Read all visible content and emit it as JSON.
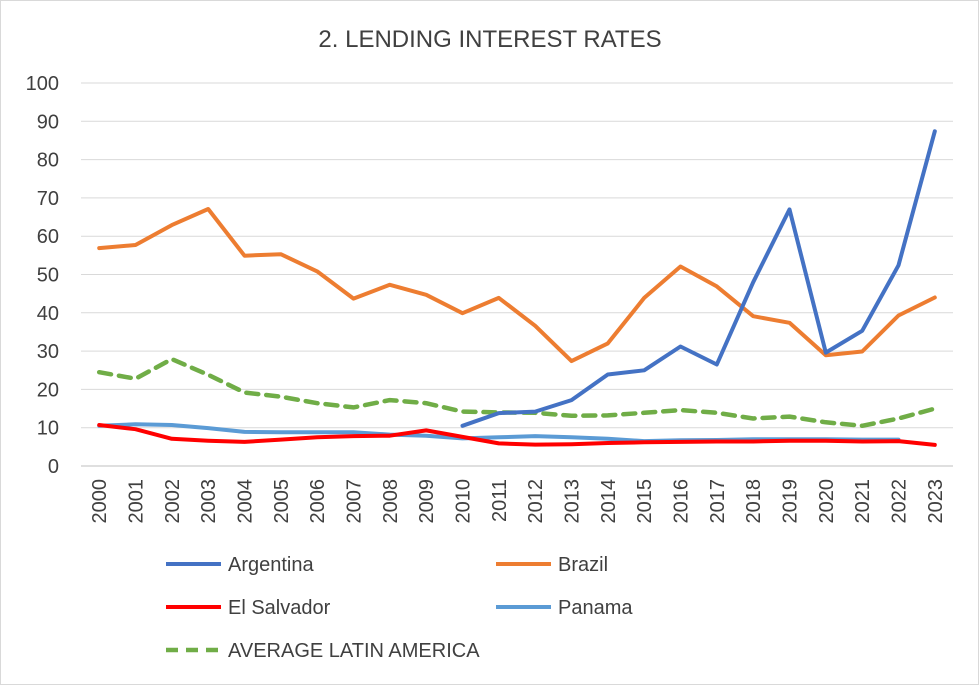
{
  "chart_data": {
    "type": "line",
    "title": "2. LENDING INTEREST RATES",
    "xlabel": "",
    "ylabel": "",
    "ylim": [
      0,
      100
    ],
    "y_ticks": [
      0,
      10,
      20,
      30,
      40,
      50,
      60,
      70,
      80,
      90,
      100
    ],
    "grid": "horizontal",
    "legend_position": "bottom",
    "categories": [
      "2000",
      "2001",
      "2002",
      "2003",
      "2004",
      "2005",
      "2006",
      "2007",
      "2008",
      "2009",
      "2010",
      "2011",
      "2012",
      "2013",
      "2014",
      "2015",
      "2016",
      "2017",
      "2018",
      "2019",
      "2020",
      "2021",
      "2022",
      "2023"
    ],
    "series": [
      {
        "name": "Argentina",
        "color": "#4472c4",
        "style": "solid",
        "values": [
          null,
          null,
          null,
          null,
          null,
          null,
          null,
          null,
          null,
          null,
          10.5,
          13.8,
          14.2,
          17.2,
          23.9,
          25.0,
          31.2,
          26.5,
          48.0,
          67.0,
          29.6,
          35.3,
          52.4,
          87.4
        ]
      },
      {
        "name": "Brazil",
        "color": "#ed7d31",
        "style": "solid",
        "values": [
          56.9,
          57.7,
          62.9,
          67.1,
          54.9,
          55.3,
          50.8,
          43.7,
          47.3,
          44.7,
          39.9,
          43.9,
          36.6,
          27.4,
          32.0,
          43.9,
          52.1,
          46.9,
          39.1,
          37.4,
          28.9,
          29.9,
          39.3,
          44.0
        ]
      },
      {
        "name": "El Salvador",
        "color": "#ff0000",
        "style": "solid",
        "values": [
          10.7,
          9.6,
          7.1,
          6.6,
          6.3,
          6.9,
          7.5,
          7.8,
          7.9,
          9.3,
          7.6,
          5.9,
          5.6,
          5.7,
          6.0,
          6.2,
          6.3,
          6.4,
          6.4,
          6.6,
          6.6,
          6.4,
          6.5,
          5.5
        ]
      },
      {
        "name": "Panama",
        "color": "#5b9bd5",
        "style": "solid",
        "values": [
          10.5,
          10.9,
          10.7,
          9.9,
          8.9,
          8.8,
          8.8,
          8.8,
          8.2,
          7.9,
          7.2,
          7.5,
          7.8,
          7.5,
          7.1,
          6.5,
          6.7,
          6.8,
          7.0,
          7.0,
          7.0,
          6.9,
          6.9,
          null
        ]
      },
      {
        "name": "AVERAGE LATIN AMERICA",
        "color": "#70ad47",
        "style": "dashed",
        "values": [
          24.5,
          22.8,
          27.9,
          23.8,
          19.2,
          18.1,
          16.4,
          15.3,
          17.2,
          16.4,
          14.2,
          14.0,
          13.9,
          13.1,
          13.2,
          13.9,
          14.6,
          13.9,
          12.4,
          12.9,
          11.4,
          10.5,
          12.4,
          15.0
        ]
      }
    ]
  }
}
